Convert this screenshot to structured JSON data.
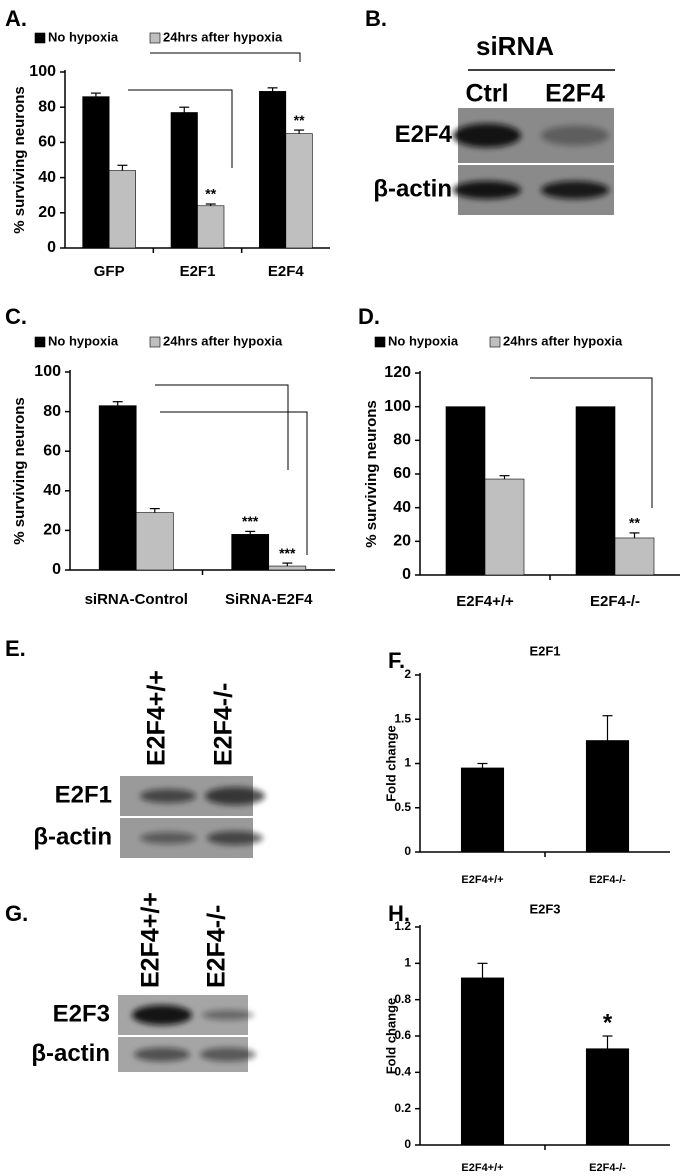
{
  "chart_data": [
    {
      "panel": "A.",
      "type": "bar",
      "ylabel": "% surviving neurons",
      "categories": [
        "GFP",
        "E2F1",
        "E2F4"
      ],
      "series": [
        {
          "name": "No hypoxia",
          "color": "#000000",
          "values": [
            86,
            77,
            89
          ],
          "errors": [
            2,
            3,
            2
          ]
        },
        {
          "name": "24hrs after hypoxia",
          "color": "#bfbfbf",
          "values": [
            44,
            24,
            65
          ],
          "errors": [
            3,
            1,
            2
          ],
          "annotations": [
            null,
            "**",
            "**"
          ]
        }
      ],
      "ylim": [
        0,
        100
      ],
      "yticks": [
        0,
        20,
        40,
        60,
        80,
        100
      ],
      "legend": "top"
    },
    {
      "panel": "C.",
      "type": "bar",
      "ylabel": "% surviving neurons",
      "categories": [
        "siRNA-Control",
        "SiRNA-E2F4"
      ],
      "series": [
        {
          "name": "No hypoxia",
          "color": "#000000",
          "values": [
            83,
            18
          ],
          "errors": [
            2,
            1.5
          ],
          "annotations": [
            null,
            "***"
          ]
        },
        {
          "name": "24hrs after hypoxia",
          "color": "#bfbfbf",
          "values": [
            29,
            2
          ],
          "errors": [
            2,
            1.5
          ],
          "annotations": [
            null,
            "***"
          ]
        }
      ],
      "ylim": [
        0,
        100
      ],
      "yticks": [
        0,
        20,
        40,
        60,
        80,
        100
      ],
      "legend": "top"
    },
    {
      "panel": "D.",
      "type": "bar",
      "ylabel": "% surviving neurons",
      "categories": [
        "E2F4+/+",
        "E2F4-/-"
      ],
      "series": [
        {
          "name": "No hypoxia",
          "color": "#000000",
          "values": [
            100,
            100
          ]
        },
        {
          "name": "24hrs after hypoxia",
          "color": "#bfbfbf",
          "values": [
            57,
            22
          ],
          "errors": [
            2,
            3
          ],
          "annotations": [
            null,
            "**"
          ]
        }
      ],
      "ylim": [
        0,
        120
      ],
      "yticks": [
        0,
        20,
        40,
        60,
        80,
        100,
        120
      ],
      "legend": "top"
    },
    {
      "panel": "F.",
      "type": "bar",
      "title": "E2F1",
      "ylabel": "Fold change",
      "categories": [
        "E2F4+/+",
        "E2F4-/-"
      ],
      "series": [
        {
          "color": "#000000",
          "values": [
            0.95,
            1.26
          ],
          "errors": [
            0.05,
            0.28
          ]
        }
      ],
      "ylim": [
        0,
        2
      ],
      "yticks": [
        0,
        0.5,
        1,
        1.5,
        2
      ]
    },
    {
      "panel": "H.",
      "type": "bar",
      "title": "E2F3",
      "ylabel": "Fold change",
      "categories": [
        "E2F4+/+",
        "E2F4-/-"
      ],
      "series": [
        {
          "color": "#000000",
          "values": [
            0.92,
            0.53
          ],
          "errors": [
            0.08,
            0.07
          ],
          "annotations": [
            null,
            "*"
          ]
        }
      ],
      "ylim": [
        0,
        1.2
      ],
      "yticks": [
        0,
        0.2,
        0.4,
        0.6,
        0.8,
        1,
        1.2
      ]
    }
  ],
  "blots": [
    {
      "panel": "B.",
      "header": "siRNA",
      "lanes": [
        "Ctrl",
        "E2F4"
      ],
      "rows": [
        "E2F4",
        "β-actin"
      ]
    },
    {
      "panel": "E.",
      "lanes": [
        "E2F4+/+",
        "E2F4-/-"
      ],
      "rows": [
        "E2F1",
        "β-actin"
      ]
    },
    {
      "panel": "G.",
      "lanes": [
        "E2F4+/+",
        "E2F4-/-"
      ],
      "rows": [
        "E2F3",
        "β-actin"
      ]
    }
  ]
}
